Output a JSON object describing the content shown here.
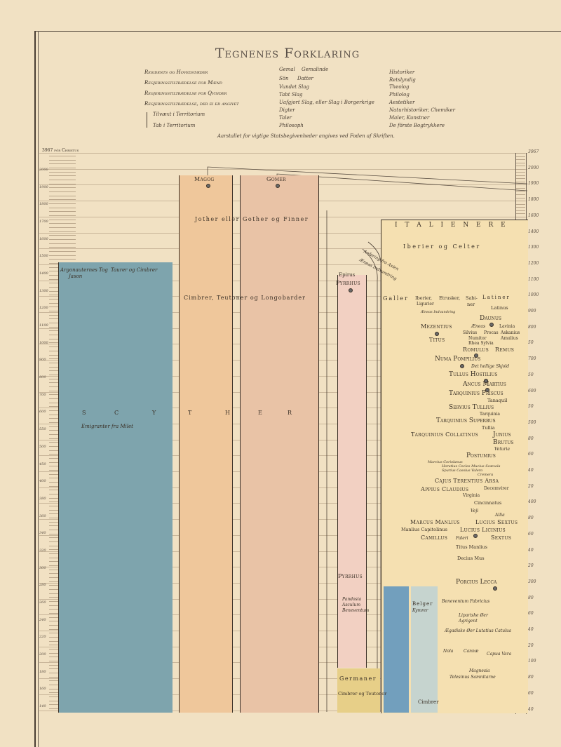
{
  "title": "Tegnenes Forklaring",
  "legend": {
    "col1": [
      "Residents og Hovedstæder",
      "Regjeringstiltrædelse for Mænd",
      "Regjeringstiltrædelse for Qvinder",
      "Regjeringstiltrædelse, der ei er angivet",
      "Tilvæxt i Territorium",
      "Tab i Territorium"
    ],
    "col2": [
      "Gemal",
      "Gemalinde",
      "Sön",
      "Datter",
      "Vundet Slag",
      "Tabt Slag",
      "Uafgjort Slag, eller Slag i Borgerkrige",
      "Digter",
      "Taler",
      "Philosoph"
    ],
    "col3": [
      "Historiker",
      "Retslyndig",
      "Theolog",
      "Philolog",
      "Aestetiker",
      "Naturhistoriker, Chemiker",
      "Maler, Kunstner",
      "De förste Bogtrykkere"
    ],
    "footnote": "Aarstallet for vigtige Statsbegivenheder angives ved Foden af Skriften."
  },
  "axis": {
    "left_header": "3967 för Christus",
    "left_labels": [
      "2000",
      "1900",
      "1800",
      "1700",
      "1600",
      "1500",
      "1400",
      "1300",
      "1200",
      "1100",
      "1000",
      "900",
      "800",
      "700",
      "600",
      "550",
      "500",
      "450",
      "400",
      "380",
      "360",
      "340",
      "320",
      "300",
      "280",
      "260",
      "240",
      "220",
      "200",
      "180",
      "160",
      "140"
    ],
    "right_labels": [
      "3967",
      "2000",
      "1900",
      "1800",
      "1600",
      "1400",
      "1300",
      "1200",
      "1100",
      "1000",
      "900",
      "800",
      "50",
      "700",
      "50",
      "600",
      "50",
      "500",
      "80",
      "60",
      "40",
      "20",
      "400",
      "80",
      "60",
      "40",
      "20",
      "300",
      "80",
      "60",
      "40",
      "20",
      "100",
      "80",
      "60",
      "40"
    ]
  },
  "colors": {
    "paper": "#f1e1c3",
    "scyther": "#7ea4ad",
    "magog": "#efc79b",
    "gomer": "#e9c3a6",
    "epirus": "#f2d0c2",
    "germaner": "#e7cf88",
    "galler_blue": "#729fbd",
    "belger": "#c6d4cf",
    "italiener": "#f5e0b1"
  },
  "peoples": {
    "argonauts": "Argonauternes Tog",
    "jason": "Jason",
    "taurer": "Taurer og Cimbrer",
    "scyther_letters": [
      "S",
      "C",
      "Y",
      "T",
      "H",
      "E",
      "R"
    ],
    "emigranter": "Emigranter fra Milet",
    "magog": "Magog",
    "gomer": "Gomer",
    "jother": "Jother eller Gother og Finner",
    "cimbrer_teutoner": "Cimbrer, Teutoner og Longobarder",
    "epirus": "Epirus",
    "pyrrhus_top": "Pyrrhus",
    "pyrrhus": "Pyrrhus",
    "pandosia": "Pandosia",
    "asculum": "Asculum",
    "beneventum_p": "Beneventum",
    "germaner": "Germaner",
    "cimbrer_og_teutoner": "Cimbrer og Teutoner",
    "belger": "Belger",
    "kymrer": "Kymrer",
    "cimbrer": "Cimbrer",
    "anforing1": "Anføring fra Asien",
    "anforing2": "Æneas Indvandring"
  },
  "italy": {
    "italienere": "I T A L I E N E R E",
    "iberier_celter": "Iberier og Celter",
    "galler": "Galler",
    "iberier": "Iberier,",
    "ligurier": "Ligurier",
    "etrusker": "Etrusker,",
    "sabiner1": "Sabi-",
    "sabiner2": "ner",
    "latiner": "Latiner",
    "latinus": "Latinus",
    "aeneas_indv": "Æneas Indvandring",
    "daunus": "Daunus",
    "aeneas": "Æneas",
    "lavinia": "Lavinia",
    "silvius": "Silvius",
    "procas": "Procas",
    "askanius": "Askanius",
    "mezentius": "Mezentius",
    "numitor": "Numitor",
    "amulius": "Amulius",
    "titus": "Titus",
    "rhea": "Rhea Sylvia",
    "romulus": "Romulus",
    "remus": "Remus",
    "numa": "Numa Pompilius",
    "skjold": "Det hellige Skjold",
    "tullus": "Tullus Hostilius",
    "ancus": "Ancus Martius",
    "tarq_priscus": "Tarquinius Priscus",
    "tanaquil": "Tanaquil",
    "servius": "Servius Tullius",
    "tarquinia": "Tarquinia",
    "tarq_superbus": "Tarquinius Superbus",
    "tullia": "Tullia",
    "tarq_collatinus": "Tarquinius Collatinus",
    "junius": "Junius",
    "brutus": "Brutus",
    "veturia": "Veturia",
    "postumius": "Postumius",
    "coriolanus": "Marcius Coriolanus",
    "horatius": "Horatius Cocles  Mucius Scævola",
    "spurius": "Spurius Cassius  Valero",
    "cremera": "Cremera",
    "cajus": "Cajus Terentius Arsa",
    "appius": "Appius Claudius",
    "decemvirer": "Decemvirer",
    "virginia": "Virginia",
    "cincinnatus": "Cincinnatus",
    "veji": "Veji",
    "allia": "Allia",
    "marcus_manlius": "Marcus Manlius",
    "lucius_sextus": "Lucius Sextus",
    "manlius_cap": "Manlius Capitolinus",
    "lucius_licinius": "Lucius Licinius",
    "camillus": "Camillus",
    "faleri": "Faleri",
    "sextus": "Sextus",
    "titus_manlius": "Titus Manlius",
    "decius": "Decius Mus",
    "porcius": "Porcius Lecca",
    "beneventum": "Beneventum  Fabricius",
    "liparishe": "Liparishe Øer",
    "agrigent": "Agrigent",
    "aegadiske": "Ægadiske Øer  Lutatius Catulus",
    "nola": "Nola",
    "cannae": "Cannæ",
    "capua": "Capua Vara",
    "magnesia": "Magnesia",
    "telesinus": "Telesinus  Samnitarne"
  }
}
